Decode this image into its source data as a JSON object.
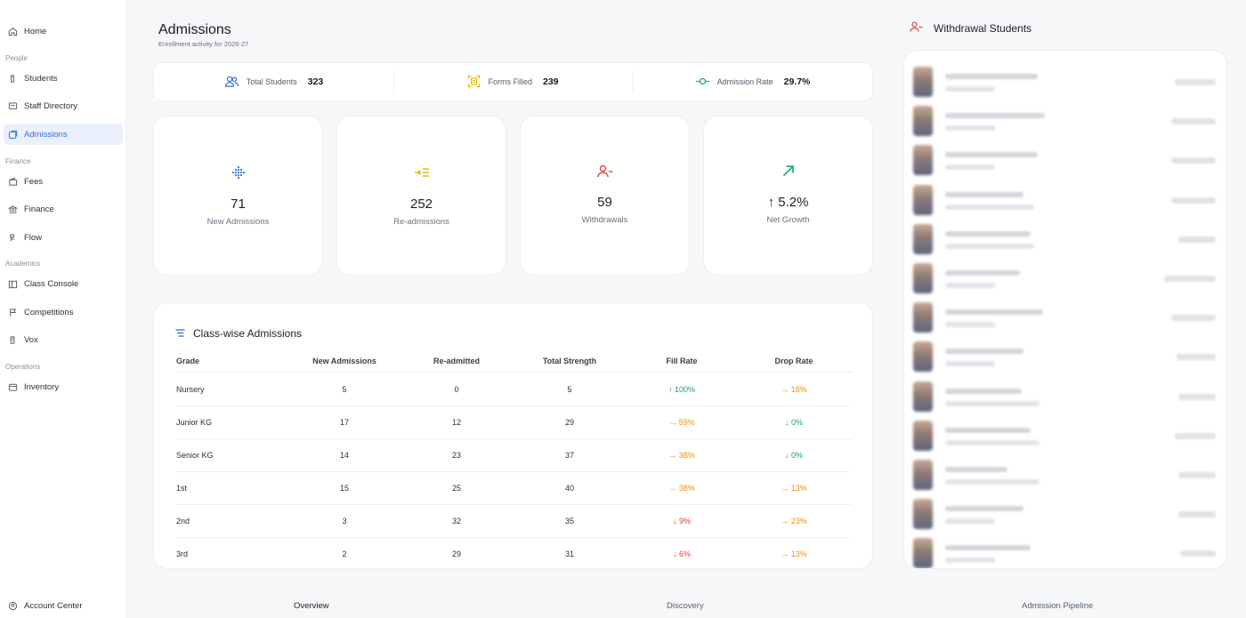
{
  "sidebar": {
    "items": [
      {
        "label": "Home",
        "icon": "home-icon"
      },
      {
        "label": "Students",
        "icon": "student-icon"
      },
      {
        "label": "Staff Directory",
        "icon": "staff-icon"
      },
      {
        "label": "Admissions",
        "icon": "admissions-icon"
      },
      {
        "label": "Fees",
        "icon": "fees-icon"
      },
      {
        "label": "Finance",
        "icon": "bank-icon"
      },
      {
        "label": "Flow",
        "icon": "flow-icon"
      },
      {
        "label": "Class Console",
        "icon": "class-console-icon"
      },
      {
        "label": "Competitions",
        "icon": "flag-icon"
      },
      {
        "label": "Vox",
        "icon": "vox-icon"
      },
      {
        "label": "Inventory",
        "icon": "inventory-icon"
      }
    ],
    "sections": [
      "People",
      "Finance",
      "Academics",
      "Operations"
    ],
    "account": "Account Center"
  },
  "header": {
    "title": "Admissions",
    "subtitle": "Enrollment activity for 2026-27"
  },
  "stats": [
    {
      "label": "Total Students",
      "value": "323",
      "icon": "users-icon"
    },
    {
      "label": "Forms Filled",
      "value": "239",
      "icon": "form-scan-icon"
    },
    {
      "label": "Admission Rate",
      "value": "29.7%",
      "icon": "commit-icon"
    }
  ],
  "cards": [
    {
      "value": "71",
      "label": "New Admissions",
      "icon": "grid-dots-icon"
    },
    {
      "value": "252",
      "label": "Re-admissions",
      "icon": "arrow-list-icon"
    },
    {
      "value": "59",
      "label": "Withdrawals",
      "icon": "user-minus-icon"
    },
    {
      "value": "↑ 5.2%",
      "label": "Net Growth",
      "icon": "trend-up-icon"
    }
  ],
  "table": {
    "title": "Class-wise Admissions",
    "headers": [
      "Grade",
      "New Admissions",
      "Re-admitted",
      "Total Strength",
      "Fill Rate",
      "Drop Rate"
    ],
    "rows": [
      {
        "grade": "Nursery",
        "new": "5",
        "re": "0",
        "total": "5",
        "fill": "↑ 100%",
        "fill_trend": "up",
        "drop": "→ 18%",
        "drop_trend": "side"
      },
      {
        "grade": "Junior KG",
        "new": "17",
        "re": "12",
        "total": "29",
        "fill": "→ 59%",
        "fill_trend": "side",
        "drop": "↓ 0%",
        "drop_trend": "up"
      },
      {
        "grade": "Senior KG",
        "new": "14",
        "re": "23",
        "total": "37",
        "fill": "→ 38%",
        "fill_trend": "side",
        "drop": "↓ 0%",
        "drop_trend": "up"
      },
      {
        "grade": "1st",
        "new": "15",
        "re": "25",
        "total": "40",
        "fill": "→ 38%",
        "fill_trend": "side",
        "drop": "→ 13%",
        "drop_trend": "side"
      },
      {
        "grade": "2nd",
        "new": "3",
        "re": "32",
        "total": "35",
        "fill": "↓ 9%",
        "fill_trend": "down",
        "drop": "→ 23%",
        "drop_trend": "side"
      },
      {
        "grade": "3rd",
        "new": "2",
        "re": "29",
        "total": "31",
        "fill": "↓ 6%",
        "fill_trend": "down",
        "drop": "→ 13%",
        "drop_trend": "side"
      }
    ]
  },
  "withdrawals": {
    "title": "Withdrawal Students",
    "count_rows": 13
  },
  "tabs": [
    "Overview",
    "Discovery",
    "Admission Pipeline"
  ],
  "colors": {
    "accent": "#2f6fde",
    "up": "#22a35a",
    "side": "#f08c16",
    "down": "#e0463a",
    "forms": "#e8b713",
    "rate": "#1fae86"
  }
}
